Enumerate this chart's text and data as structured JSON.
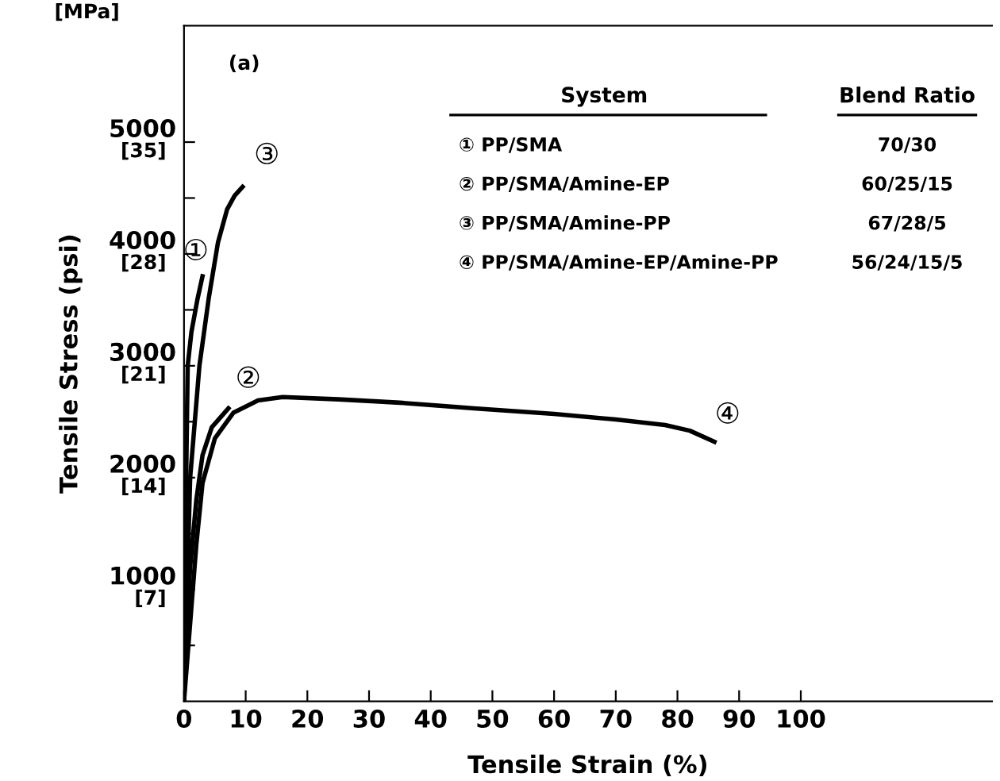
{
  "chart_data": {
    "type": "line",
    "xlabel": "Tensile Strain (%)",
    "ylabel": "Tensile Stress (psi)",
    "xlim": [
      0,
      131
    ],
    "ylim": [
      0,
      6040
    ],
    "y2lim": [
      0,
      42.28
    ],
    "xticks": [
      0,
      10,
      20,
      30,
      40,
      50,
      60,
      70,
      80,
      90,
      100
    ],
    "yticks": [
      {
        "value": 500,
        "label": null
      },
      1000,
      {
        "value": 1500,
        "label": null
      },
      2000,
      {
        "value": 2500,
        "label": null
      },
      3000,
      {
        "value": 3500,
        "label": null
      },
      4000,
      {
        "value": 4500,
        "label": null
      },
      5000
    ],
    "y2ticks": [
      {
        "value": 7,
        "label": "[7]"
      },
      {
        "value": 14,
        "label": "[14]"
      },
      {
        "value": 21,
        "label": "[21]"
      },
      {
        "value": 28,
        "label": "[28]"
      },
      {
        "value": 35,
        "label": "[35]"
      }
    ],
    "grid": false,
    "legend": false,
    "marker": "none",
    "line_style": "solid",
    "series": [
      {
        "name": "①",
        "color": "#000000",
        "x": [
          0,
          0.2,
          0.4,
          0.6,
          1.2,
          2.2,
          3.0
        ],
        "values": [
          0,
          1000,
          2200,
          3000,
          3300,
          3600,
          3800
        ]
      },
      {
        "name": "②",
        "color": "#000000",
        "x": [
          0,
          0.5,
          1,
          2,
          3,
          4.5,
          7.2
        ],
        "values": [
          0,
          700,
          1200,
          1800,
          2200,
          2450,
          2620
        ]
      },
      {
        "name": "③",
        "color": "#000000",
        "x": [
          0,
          0.5,
          1.0,
          2.5,
          4.0,
          5.5,
          7.0,
          8.2,
          9.5
        ],
        "values": [
          0,
          1000,
          2000,
          3000,
          3600,
          4100,
          4400,
          4520,
          4600
        ]
      },
      {
        "name": "④",
        "color": "#000000",
        "x": [
          0,
          1,
          2,
          3,
          5,
          8,
          12,
          16,
          25,
          35,
          47,
          60,
          70,
          78,
          82,
          86
        ],
        "values": [
          0,
          700,
          1400,
          1950,
          2350,
          2580,
          2690,
          2720,
          2700,
          2670,
          2620,
          2570,
          2520,
          2470,
          2420,
          2320
        ]
      }
    ],
    "annotations": [
      "(a)",
      "[MPa]",
      "System",
      "Blend Ratio",
      "① PP/SMA",
      "70/30",
      "② PP/SMA/Amine-EP",
      "60/25/15",
      "③ PP/SMA/Amine-PP",
      "67/28/5",
      "④ PP/SMA/Amine-EP/Amine-PP",
      "56/24/15/5"
    ]
  }
}
